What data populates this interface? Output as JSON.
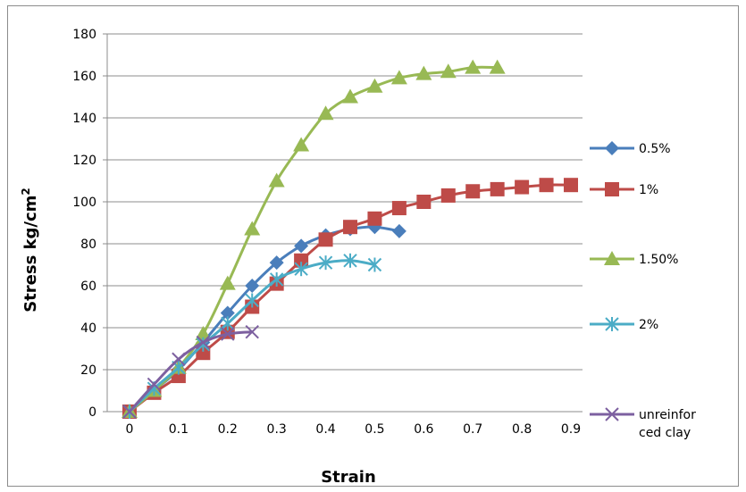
{
  "chart_data": {
    "type": "line",
    "xlabel": "Strain",
    "ylabel": "Stress kg/cm",
    "ylabel_superscript": "2",
    "xlim": [
      0,
      0.9
    ],
    "ylim": [
      0,
      180
    ],
    "x_ticks": [
      "0",
      "0.1",
      "0.2",
      "0.3",
      "0.4",
      "0.5",
      "0.6",
      "0.7",
      "0.8",
      "0.9"
    ],
    "y_ticks": [
      "0",
      "20",
      "40",
      "60",
      "80",
      "100",
      "120",
      "140",
      "160",
      "180"
    ],
    "grid": "horizontal",
    "legend_position": "right",
    "series": [
      {
        "name": "0.5%",
        "color": "#4a7ebb",
        "marker": "diamond",
        "points": [
          [
            0,
            0
          ],
          [
            0.05,
            10
          ],
          [
            0.1,
            20
          ],
          [
            0.15,
            33
          ],
          [
            0.2,
            47
          ],
          [
            0.25,
            60
          ],
          [
            0.3,
            71
          ],
          [
            0.35,
            79
          ],
          [
            0.4,
            84
          ],
          [
            0.45,
            87
          ],
          [
            0.5,
            88
          ],
          [
            0.55,
            86
          ]
        ]
      },
      {
        "name": "1%",
        "color": "#be4b48",
        "marker": "square",
        "points": [
          [
            0,
            0
          ],
          [
            0.05,
            9
          ],
          [
            0.1,
            17
          ],
          [
            0.15,
            28
          ],
          [
            0.2,
            38
          ],
          [
            0.25,
            50
          ],
          [
            0.3,
            61
          ],
          [
            0.35,
            72
          ],
          [
            0.4,
            82
          ],
          [
            0.45,
            88
          ],
          [
            0.5,
            92
          ],
          [
            0.55,
            97
          ],
          [
            0.6,
            100
          ],
          [
            0.65,
            103
          ],
          [
            0.7,
            105
          ],
          [
            0.75,
            106
          ],
          [
            0.8,
            107
          ],
          [
            0.85,
            108
          ],
          [
            0.9,
            108
          ]
        ]
      },
      {
        "name": "1.50%",
        "color": "#98b954",
        "marker": "triangle",
        "points": [
          [
            0,
            0
          ],
          [
            0.05,
            10
          ],
          [
            0.1,
            21
          ],
          [
            0.15,
            37
          ],
          [
            0.2,
            61
          ],
          [
            0.25,
            87
          ],
          [
            0.3,
            110
          ],
          [
            0.35,
            127
          ],
          [
            0.4,
            142
          ],
          [
            0.45,
            150
          ],
          [
            0.5,
            155
          ],
          [
            0.55,
            159
          ],
          [
            0.6,
            161
          ],
          [
            0.65,
            162
          ],
          [
            0.7,
            164
          ],
          [
            0.75,
            164
          ]
        ]
      },
      {
        "name": "2%",
        "color": "#4bacc6",
        "marker": "star",
        "points": [
          [
            0,
            0
          ],
          [
            0.05,
            11
          ],
          [
            0.1,
            21
          ],
          [
            0.15,
            32
          ],
          [
            0.2,
            42
          ],
          [
            0.25,
            53
          ],
          [
            0.3,
            63
          ],
          [
            0.35,
            68
          ],
          [
            0.4,
            71
          ],
          [
            0.45,
            72
          ],
          [
            0.5,
            70
          ]
        ]
      },
      {
        "name": "unreinforced clay",
        "legend_lines": [
          "unreinfor",
          "ced clay"
        ],
        "color": "#7d60a0",
        "marker": "x",
        "points": [
          [
            0,
            0
          ],
          [
            0.05,
            13
          ],
          [
            0.1,
            25
          ],
          [
            0.15,
            33
          ],
          [
            0.2,
            37
          ],
          [
            0.25,
            38
          ]
        ]
      }
    ]
  }
}
